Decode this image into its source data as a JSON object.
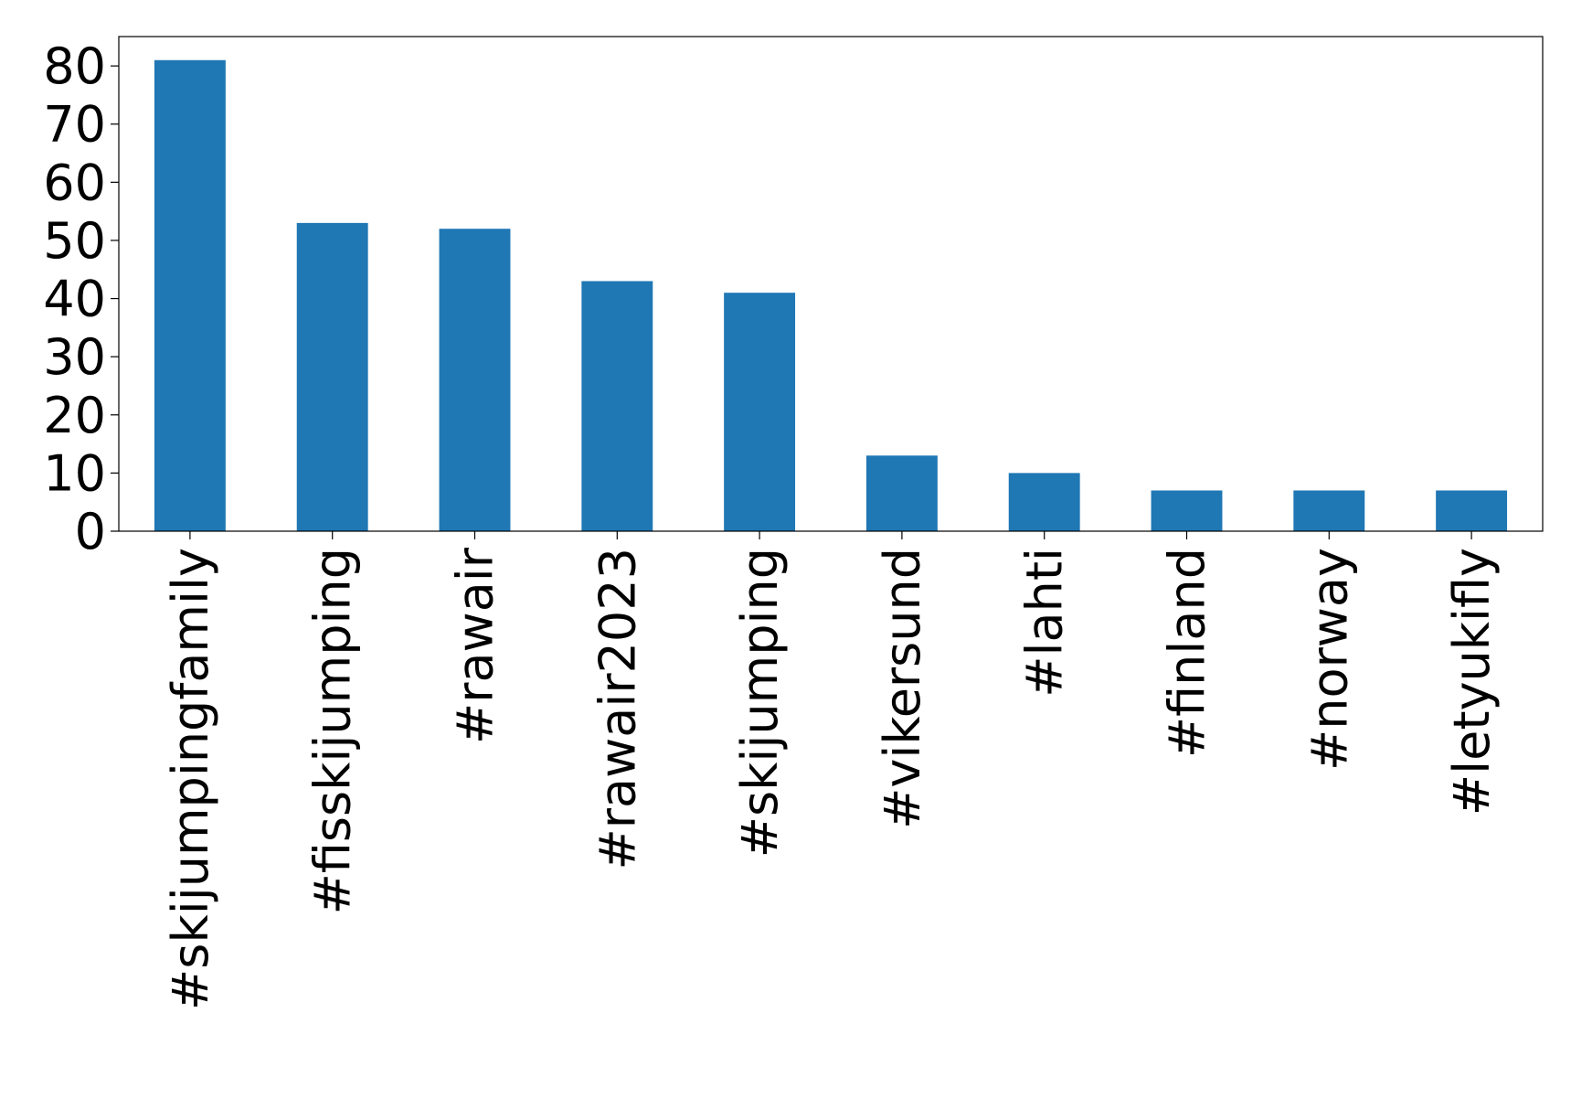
{
  "chart_data": {
    "type": "bar",
    "categories": [
      "#skijumpingfamily",
      "#fisskijumping",
      "#rawair",
      "#rawair2023",
      "#skijumping",
      "#vikersund",
      "#lahti",
      "#finland",
      "#norway",
      "#letyukifly"
    ],
    "values": [
      81,
      53,
      52,
      43,
      41,
      13,
      10,
      7,
      7,
      7
    ],
    "color": "#1f77b4",
    "ylim": [
      0,
      85.05
    ],
    "yticks": [
      0,
      10,
      20,
      30,
      40,
      50,
      60,
      70,
      80
    ],
    "grid": false
  }
}
